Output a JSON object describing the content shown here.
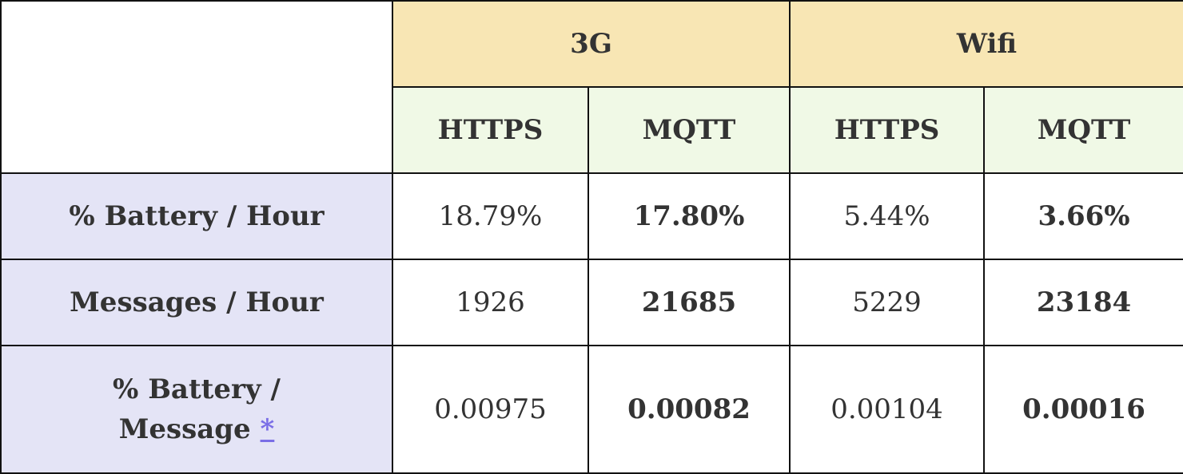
{
  "table": {
    "groups": [
      {
        "label": "3G"
      },
      {
        "label": "Wifi"
      }
    ],
    "protocols": [
      "HTTPS",
      "MQTT",
      "HTTPS",
      "MQTT"
    ],
    "rows": [
      {
        "label": "% Battery / Hour",
        "values": [
          "18.79%",
          "17.80%",
          "5.44%",
          "3.66%"
        ]
      },
      {
        "label": "Messages / Hour",
        "values": [
          "1926",
          "21685",
          "5229",
          "23184"
        ]
      },
      {
        "label": "% Battery / Message",
        "footnote": "*",
        "values": [
          "0.00975",
          "0.00082",
          "0.00104",
          "0.00016"
        ]
      }
    ]
  }
}
